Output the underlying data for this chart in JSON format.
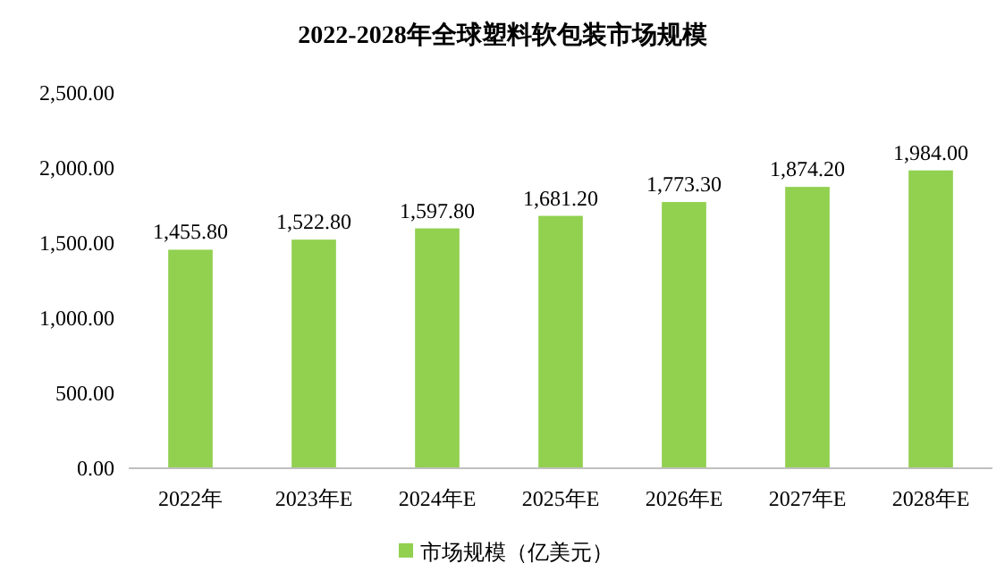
{
  "chart_data": {
    "type": "bar",
    "title": "2022-2028年全球塑料软包装市场规模",
    "categories": [
      "2022年",
      "2023年E",
      "2024年E",
      "2025年E",
      "2026年E",
      "2027年E",
      "2028年E"
    ],
    "series": [
      {
        "name": "市场规模（亿美元）",
        "color": "#92d050",
        "values": [
          1455.8,
          1522.8,
          1597.8,
          1681.2,
          1773.3,
          1874.2,
          1984.0
        ],
        "value_labels": [
          "1,455.80",
          "1,522.80",
          "1,597.80",
          "1,681.20",
          "1,773.30",
          "1,874.20",
          "1,984.00"
        ]
      }
    ],
    "ylim": [
      0,
      2500
    ],
    "yticks": [
      {
        "value": 0,
        "label": "0.00"
      },
      {
        "value": 500,
        "label": "500.00"
      },
      {
        "value": 1000,
        "label": "1,000.00"
      },
      {
        "value": 1500,
        "label": "1,500.00"
      },
      {
        "value": 2000,
        "label": "2,000.00"
      },
      {
        "value": 2500,
        "label": "2,500.00"
      }
    ],
    "grid": false,
    "legend": "bottom"
  }
}
